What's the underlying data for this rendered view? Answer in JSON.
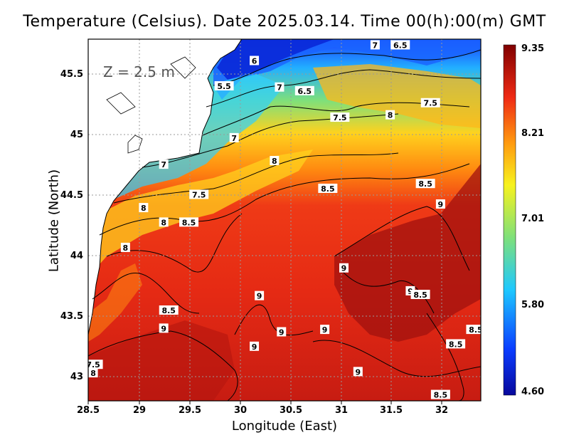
{
  "title": "Temperature (Celsius). Date 2025.03.14. Time 00(h):00(m)  GMT",
  "depth_label": "Z = 2.5 m",
  "xlabel": "Longitude (East)",
  "ylabel": "Latitude (North)",
  "colors": {
    "land": "#ffffff",
    "coast": "#000000",
    "grid": "#9a9a9a",
    "contour": "#000000",
    "colormap": [
      "#08089c",
      "#0a3cff",
      "#20c8ff",
      "#7fe07a",
      "#f7f21e",
      "#ff9a10",
      "#ef2a14",
      "#b80f0f",
      "#800000"
    ]
  },
  "map_data": {
    "type": "filled-contour",
    "variable": "temperature",
    "units": "Celsius",
    "lon_range": [
      28.5,
      32.4
    ],
    "lat_range": [
      42.8,
      45.8
    ],
    "lon_ticks": [
      "28.5",
      "29",
      "29.5",
      "30",
      "30.5",
      "31",
      "31.5",
      "32"
    ],
    "lat_ticks": [
      "43",
      "43.5",
      "44",
      "44.5",
      "45",
      "45.5"
    ],
    "colorbar": {
      "min": 4.6,
      "max": 9.35,
      "labels": [
        "9.35",
        "8.21",
        "7.01",
        "5.80",
        "4.60"
      ]
    },
    "contour_labels": [
      {
        "text": "6",
        "lon": 30.15,
        "lat": 45.62
      },
      {
        "text": "6.5",
        "lon": 31.6,
        "lat": 45.75
      },
      {
        "text": "7",
        "lon": 31.35,
        "lat": 45.75
      },
      {
        "text": "5.5",
        "lon": 29.85,
        "lat": 45.41
      },
      {
        "text": "7",
        "lon": 30.4,
        "lat": 45.4
      },
      {
        "text": "6.5",
        "lon": 30.65,
        "lat": 45.37
      },
      {
        "text": "7.5",
        "lon": 31.9,
        "lat": 45.27
      },
      {
        "text": "7.5",
        "lon": 31.0,
        "lat": 45.15
      },
      {
        "text": "8",
        "lon": 31.5,
        "lat": 45.17
      },
      {
        "text": "7",
        "lon": 29.95,
        "lat": 44.98
      },
      {
        "text": "8",
        "lon": 30.35,
        "lat": 44.79
      },
      {
        "text": "7",
        "lon": 29.25,
        "lat": 44.76
      },
      {
        "text": "8.5",
        "lon": 31.85,
        "lat": 44.6
      },
      {
        "text": "8.5",
        "lon": 30.88,
        "lat": 44.56
      },
      {
        "text": "7.5",
        "lon": 29.6,
        "lat": 44.51
      },
      {
        "text": "9",
        "lon": 32.0,
        "lat": 44.43
      },
      {
        "text": "8",
        "lon": 29.05,
        "lat": 44.4
      },
      {
        "text": "8",
        "lon": 29.25,
        "lat": 44.28
      },
      {
        "text": "8.5",
        "lon": 29.5,
        "lat": 44.28
      },
      {
        "text": "8",
        "lon": 28.87,
        "lat": 44.07
      },
      {
        "text": "9",
        "lon": 31.04,
        "lat": 43.9
      },
      {
        "text": "9",
        "lon": 31.7,
        "lat": 43.71
      },
      {
        "text": "8.5",
        "lon": 31.8,
        "lat": 43.68
      },
      {
        "text": "9",
        "lon": 30.2,
        "lat": 43.67
      },
      {
        "text": "8.5",
        "lon": 29.3,
        "lat": 43.55
      },
      {
        "text": "9",
        "lon": 29.25,
        "lat": 43.4
      },
      {
        "text": "9",
        "lon": 30.42,
        "lat": 43.37
      },
      {
        "text": "9",
        "lon": 30.85,
        "lat": 43.39
      },
      {
        "text": "8.5",
        "lon": 32.35,
        "lat": 43.39
      },
      {
        "text": "8.5",
        "lon": 32.15,
        "lat": 43.27
      },
      {
        "text": "9",
        "lon": 30.15,
        "lat": 43.25
      },
      {
        "text": "7.5",
        "lon": 28.55,
        "lat": 43.1
      },
      {
        "text": "8",
        "lon": 28.55,
        "lat": 43.03
      },
      {
        "text": "9",
        "lon": 31.18,
        "lat": 43.04
      },
      {
        "text": "8.5",
        "lon": 32.0,
        "lat": 42.85
      }
    ]
  }
}
